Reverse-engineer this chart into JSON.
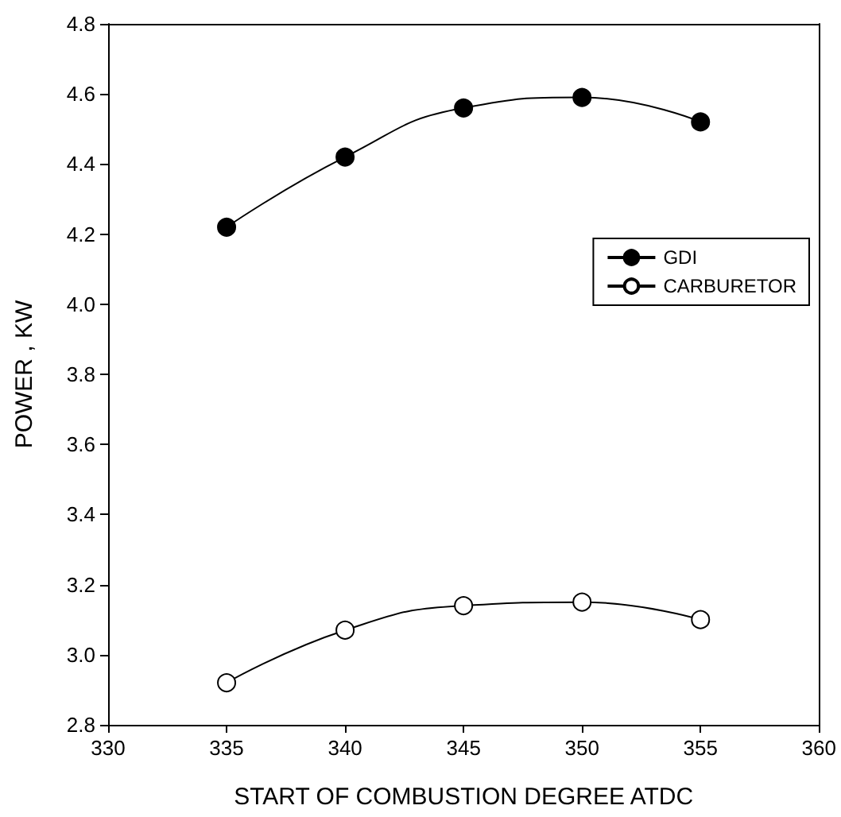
{
  "chart_data": {
    "type": "line",
    "xlabel": "START OF COMBUSTION DEGREE ATDC",
    "ylabel": "POWER , KW",
    "x": [
      335,
      340,
      345,
      350,
      355
    ],
    "series": [
      {
        "name": "GDI",
        "color": "#000000",
        "values": [
          4.22,
          4.42,
          4.56,
          4.59,
          4.52
        ]
      },
      {
        "name": "CARBURETOR",
        "color": "#000000",
        "values": [
          2.92,
          3.07,
          3.14,
          3.15,
          3.1
        ]
      }
    ],
    "xlim": [
      330,
      360
    ],
    "xticks": [
      330,
      335,
      340,
      345,
      350,
      355,
      360
    ],
    "ylim": [
      2.8,
      4.8
    ],
    "yticks": [
      {
        "value": 2.8,
        "label": "2.8"
      },
      {
        "value": 3.0,
        "label": "3.0"
      },
      {
        "value": 3.2,
        "label": "3.2"
      },
      {
        "value": 3.4,
        "label": "3.4"
      },
      {
        "value": 3.6,
        "label": "3.6"
      },
      {
        "value": 3.8,
        "label": "3.8"
      },
      {
        "value": 4.0,
        "label": "4.0"
      },
      {
        "value": 4.2,
        "label": "4.2"
      },
      {
        "value": 4.4,
        "label": "4.4"
      },
      {
        "value": 4.6,
        "label": "4.6"
      },
      {
        "value": 4.8,
        "label": "4.8"
      }
    ],
    "grid": false,
    "legend": "top right",
    "marker": "circle",
    "line_style": "solid"
  }
}
